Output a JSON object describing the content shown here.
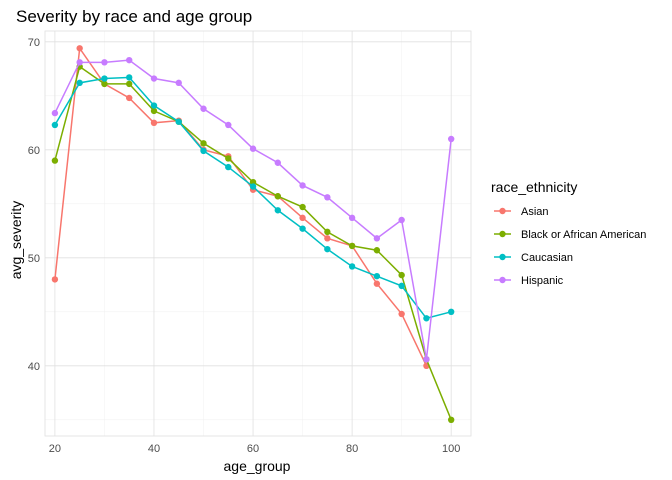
{
  "chart_data": {
    "type": "line",
    "title": "Severity by race and age group",
    "xlabel": "age_group",
    "ylabel": "avg_severity",
    "xlim": [
      18,
      104
    ],
    "ylim": [
      33.5,
      71
    ],
    "x_ticks": [
      20,
      40,
      60,
      80,
      100
    ],
    "y_ticks": [
      40,
      50,
      60,
      70
    ],
    "x_minor": [
      30,
      50,
      70,
      90
    ],
    "y_minor": [
      35,
      45,
      55,
      65
    ],
    "grid": true,
    "legend_title": "race_ethnicity",
    "legend_position": "right",
    "x": [
      20,
      25,
      30,
      35,
      40,
      45,
      50,
      55,
      60,
      65,
      70,
      75,
      80,
      85,
      90,
      95,
      100
    ],
    "series": [
      {
        "name": "Asian",
        "color": "#F8766D",
        "values": [
          48.0,
          69.4,
          66.1,
          64.8,
          62.5,
          62.7,
          60.0,
          59.4,
          56.3,
          55.7,
          53.7,
          51.8,
          51.1,
          47.6,
          44.8,
          40.0,
          null
        ]
      },
      {
        "name": "Black or African American",
        "color": "#7CAE00",
        "values": [
          59.0,
          67.7,
          66.1,
          66.1,
          63.6,
          62.6,
          60.6,
          59.2,
          57.0,
          55.7,
          54.7,
          52.4,
          51.1,
          50.7,
          48.4,
          40.6,
          35.0
        ]
      },
      {
        "name": "Caucasian",
        "color": "#00BFC4",
        "values": [
          62.3,
          66.2,
          66.6,
          66.7,
          64.1,
          62.6,
          59.9,
          58.4,
          56.6,
          54.4,
          52.7,
          50.8,
          49.2,
          48.3,
          47.4,
          44.4,
          45.0
        ]
      },
      {
        "name": "Hispanic",
        "color": "#C77CFF",
        "values": [
          63.4,
          68.1,
          68.1,
          68.3,
          66.6,
          66.2,
          63.8,
          62.3,
          60.1,
          58.8,
          56.7,
          55.6,
          53.7,
          51.8,
          53.5,
          40.6,
          61.0
        ]
      }
    ]
  }
}
